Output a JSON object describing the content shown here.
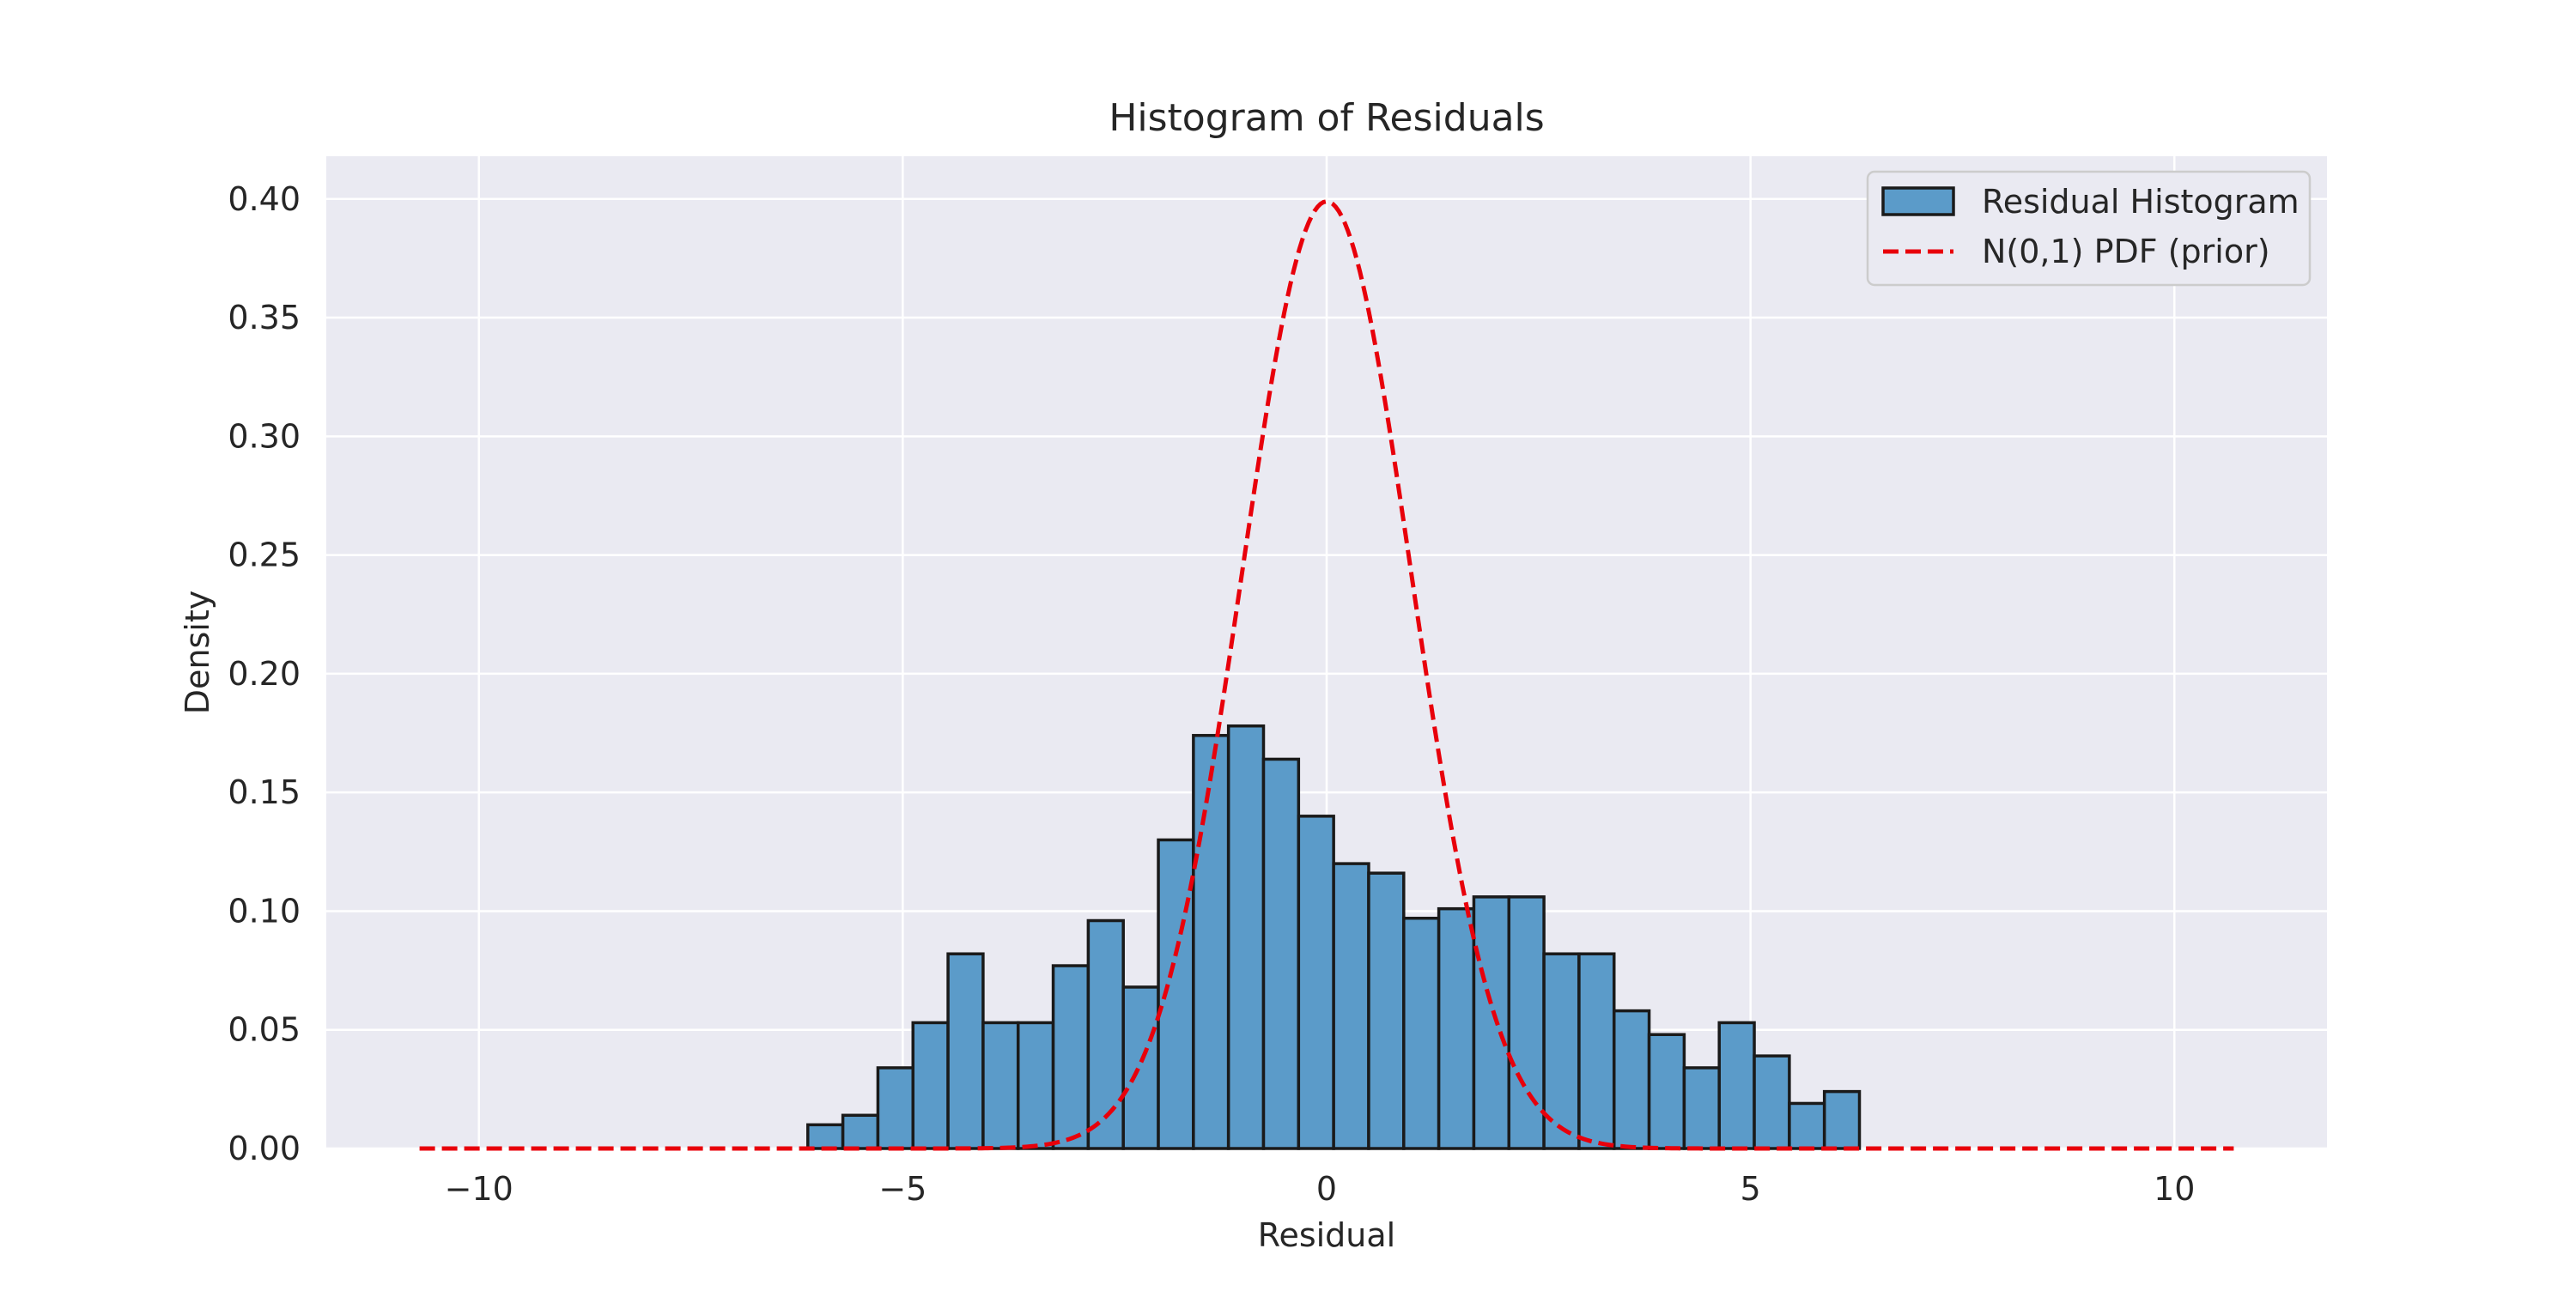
{
  "chart_data": {
    "type": "bar",
    "title": "Histogram of Residuals",
    "xlabel": "Residual",
    "ylabel": "Density",
    "xlim": [
      -11.8,
      11.8
    ],
    "ylim": [
      0,
      0.418
    ],
    "xticks": [
      -10,
      -5,
      0,
      5,
      10
    ],
    "xtick_labels": [
      "−10",
      "−5",
      "0",
      "5",
      "10"
    ],
    "yticks": [
      0.0,
      0.05,
      0.1,
      0.15,
      0.2,
      0.25,
      0.3,
      0.35,
      0.4
    ],
    "ytick_labels": [
      "0.00",
      "0.05",
      "0.10",
      "0.15",
      "0.20",
      "0.25",
      "0.30",
      "0.35",
      "0.40"
    ],
    "grid": true,
    "legend_position": "top-right",
    "colors": {
      "background": "#eaeaf2",
      "grid": "#ffffff",
      "bar_fill": "#5b9bc9",
      "bar_edge": "#1a1a1a",
      "pdf_line": "#e8000b"
    },
    "series": [
      {
        "name": "Residual Histogram",
        "type": "histogram",
        "bin_start": -6.12,
        "bin_width": 0.4135,
        "values": [
          0.01,
          0.014,
          0.034,
          0.053,
          0.082,
          0.053,
          0.053,
          0.077,
          0.096,
          0.068,
          0.13,
          0.174,
          0.178,
          0.164,
          0.14,
          0.12,
          0.116,
          0.097,
          0.101,
          0.106,
          0.106,
          0.082,
          0.082,
          0.058,
          0.048,
          0.034,
          0.053,
          0.039,
          0.019,
          0.024
        ]
      },
      {
        "name": "N(0,1) PDF (prior)",
        "type": "line",
        "style": "dashed",
        "function": "normal_pdf",
        "mean": 0,
        "std": 1,
        "x_range": [
          -10.7,
          10.7
        ]
      }
    ]
  }
}
